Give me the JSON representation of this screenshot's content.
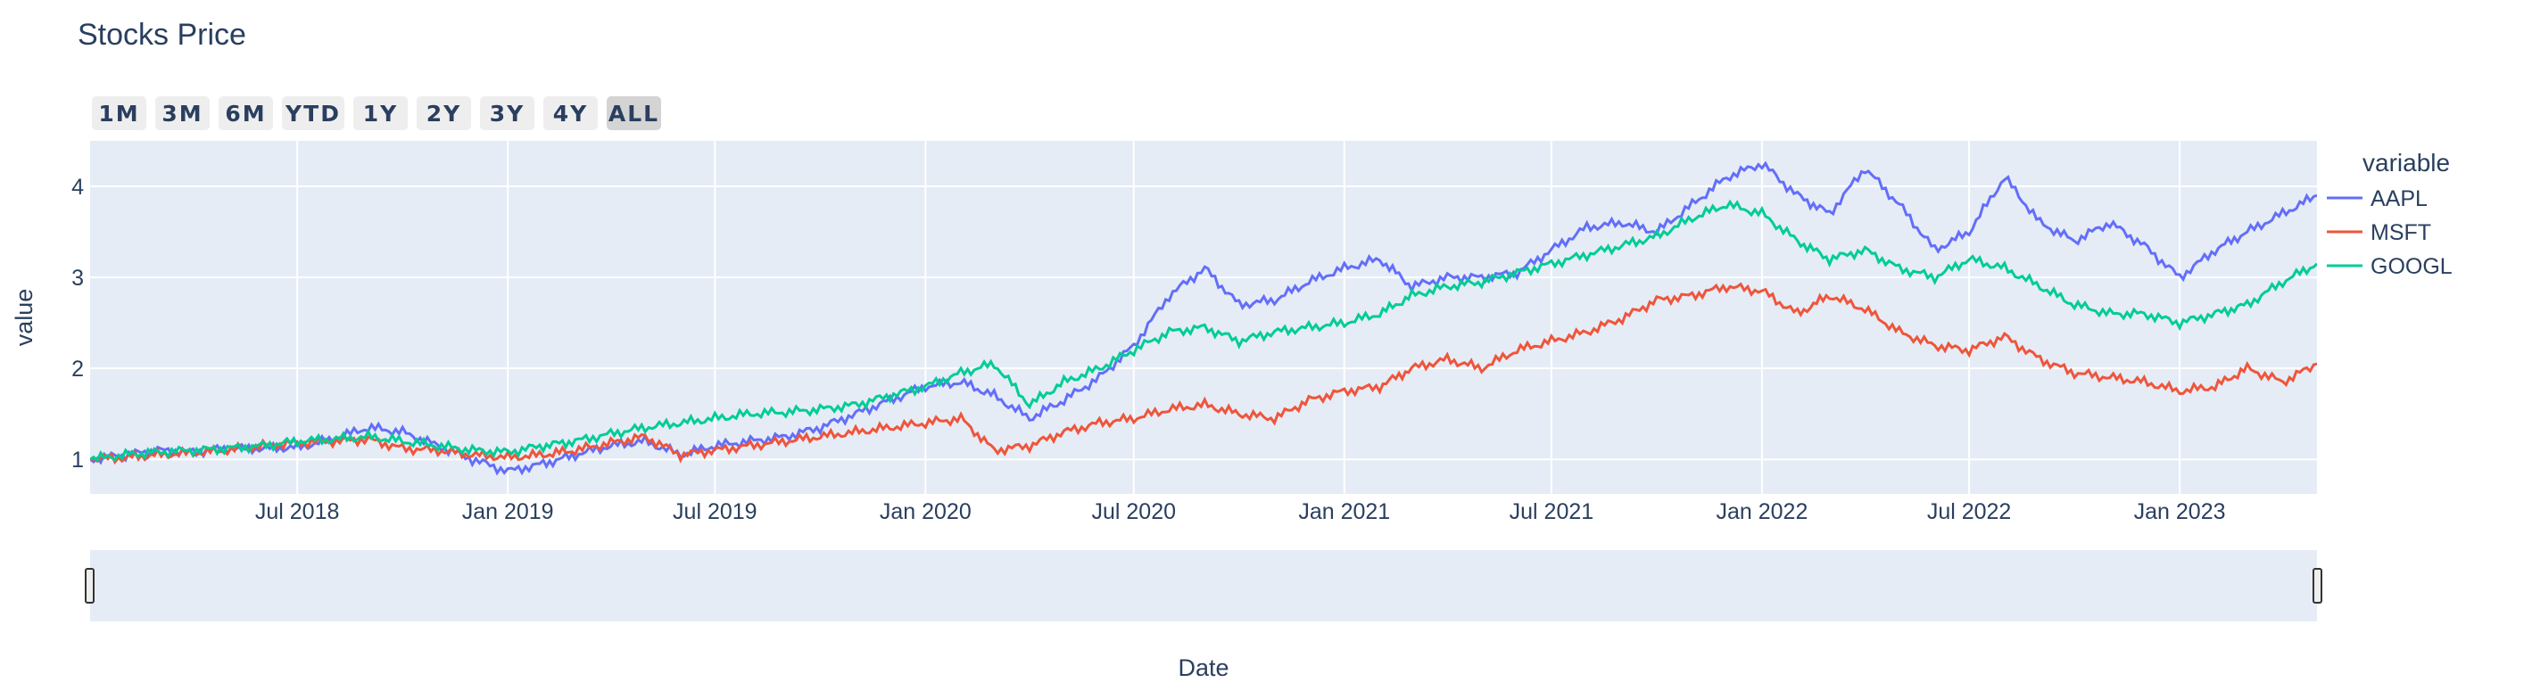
{
  "title": "Stocks Price",
  "range_selector": {
    "buttons": [
      "1M",
      "3M",
      "6M",
      "YTD",
      "1Y",
      "2Y",
      "3Y",
      "4Y",
      "ALL"
    ],
    "active": "ALL"
  },
  "colors": {
    "plot_bg": "#e5ecf6",
    "grid": "#ffffff",
    "AAPL": "#636efa",
    "MSFT": "#ef553b",
    "GOOGL": "#00cc96",
    "text": "#2a3f5f"
  },
  "chart_data": {
    "type": "line",
    "title": "Stocks Price",
    "xlabel": "Date",
    "ylabel": "value",
    "x_range": [
      "2018-01-01",
      "2023-05-01"
    ],
    "y_range": [
      0.62,
      4.5
    ],
    "x_ticks": [
      {
        "date": "2018-07-01",
        "label": "Jul 2018"
      },
      {
        "date": "2019-01-01",
        "label": "Jan 2019"
      },
      {
        "date": "2019-07-01",
        "label": "Jul 2019"
      },
      {
        "date": "2020-01-01",
        "label": "Jan 2020"
      },
      {
        "date": "2020-07-01",
        "label": "Jul 2020"
      },
      {
        "date": "2021-01-01",
        "label": "Jan 2021"
      },
      {
        "date": "2021-07-01",
        "label": "Jul 2021"
      },
      {
        "date": "2022-01-01",
        "label": "Jan 2022"
      },
      {
        "date": "2022-07-01",
        "label": "Jul 2022"
      },
      {
        "date": "2023-01-01",
        "label": "Jan 2023"
      }
    ],
    "y_ticks": [
      1,
      2,
      3,
      4
    ],
    "grid": true,
    "legend": {
      "title": "variable",
      "position": "right"
    },
    "series": [
      {
        "name": "AAPL",
        "points": [
          [
            "2018-01-01",
            1.0
          ],
          [
            "2018-02-01",
            1.05
          ],
          [
            "2018-03-01",
            1.1
          ],
          [
            "2018-04-01",
            1.08
          ],
          [
            "2018-05-01",
            1.12
          ],
          [
            "2018-06-01",
            1.12
          ],
          [
            "2018-07-01",
            1.13
          ],
          [
            "2018-08-01",
            1.22
          ],
          [
            "2018-09-01",
            1.35
          ],
          [
            "2018-10-01",
            1.3
          ],
          [
            "2018-11-01",
            1.15
          ],
          [
            "2018-12-01",
            1.0
          ],
          [
            "2019-01-01",
            0.87
          ],
          [
            "2019-02-01",
            0.95
          ],
          [
            "2019-03-01",
            1.05
          ],
          [
            "2019-04-01",
            1.15
          ],
          [
            "2019-05-01",
            1.2
          ],
          [
            "2019-06-01",
            1.05
          ],
          [
            "2019-07-01",
            1.15
          ],
          [
            "2019-08-01",
            1.2
          ],
          [
            "2019-09-01",
            1.25
          ],
          [
            "2019-10-01",
            1.35
          ],
          [
            "2019-11-01",
            1.5
          ],
          [
            "2019-12-01",
            1.65
          ],
          [
            "2020-01-01",
            1.8
          ],
          [
            "2020-02-01",
            1.85
          ],
          [
            "2020-03-01",
            1.7
          ],
          [
            "2020-04-01",
            1.45
          ],
          [
            "2020-05-01",
            1.65
          ],
          [
            "2020-06-01",
            1.9
          ],
          [
            "2020-07-01",
            2.25
          ],
          [
            "2020-08-01",
            2.8
          ],
          [
            "2020-09-01",
            3.1
          ],
          [
            "2020-10-01",
            2.7
          ],
          [
            "2020-11-01",
            2.75
          ],
          [
            "2020-12-01",
            2.95
          ],
          [
            "2021-01-01",
            3.1
          ],
          [
            "2021-02-01",
            3.2
          ],
          [
            "2021-03-01",
            2.9
          ],
          [
            "2021-04-01",
            3.0
          ],
          [
            "2021-05-01",
            3.0
          ],
          [
            "2021-06-01",
            3.05
          ],
          [
            "2021-07-01",
            3.3
          ],
          [
            "2021-08-01",
            3.55
          ],
          [
            "2021-09-01",
            3.6
          ],
          [
            "2021-10-01",
            3.5
          ],
          [
            "2021-11-01",
            3.8
          ],
          [
            "2021-12-01",
            4.1
          ],
          [
            "2022-01-01",
            4.25
          ],
          [
            "2022-02-01",
            3.9
          ],
          [
            "2022-03-01",
            3.7
          ],
          [
            "2022-04-01",
            4.2
          ],
          [
            "2022-05-01",
            3.8
          ],
          [
            "2022-06-01",
            3.3
          ],
          [
            "2022-07-01",
            3.5
          ],
          [
            "2022-08-01",
            4.1
          ],
          [
            "2022-09-01",
            3.6
          ],
          [
            "2022-10-01",
            3.4
          ],
          [
            "2022-11-01",
            3.6
          ],
          [
            "2022-12-01",
            3.35
          ],
          [
            "2023-01-01",
            3.0
          ],
          [
            "2023-02-01",
            3.3
          ],
          [
            "2023-03-01",
            3.5
          ],
          [
            "2023-04-01",
            3.7
          ],
          [
            "2023-05-01",
            3.9
          ]
        ]
      },
      {
        "name": "MSFT",
        "points": [
          [
            "2018-01-01",
            1.0
          ],
          [
            "2018-02-01",
            1.02
          ],
          [
            "2018-03-01",
            1.05
          ],
          [
            "2018-04-01",
            1.07
          ],
          [
            "2018-05-01",
            1.1
          ],
          [
            "2018-06-01",
            1.15
          ],
          [
            "2018-07-01",
            1.18
          ],
          [
            "2018-08-01",
            1.2
          ],
          [
            "2018-09-01",
            1.22
          ],
          [
            "2018-10-01",
            1.12
          ],
          [
            "2018-11-01",
            1.1
          ],
          [
            "2018-12-01",
            1.05
          ],
          [
            "2019-01-01",
            1.02
          ],
          [
            "2019-02-01",
            1.05
          ],
          [
            "2019-03-01",
            1.1
          ],
          [
            "2019-04-01",
            1.18
          ],
          [
            "2019-05-01",
            1.25
          ],
          [
            "2019-06-01",
            1.05
          ],
          [
            "2019-07-01",
            1.1
          ],
          [
            "2019-08-01",
            1.15
          ],
          [
            "2019-09-01",
            1.2
          ],
          [
            "2019-10-01",
            1.25
          ],
          [
            "2019-11-01",
            1.3
          ],
          [
            "2019-12-01",
            1.35
          ],
          [
            "2020-01-01",
            1.4
          ],
          [
            "2020-02-01",
            1.45
          ],
          [
            "2020-03-01",
            1.1
          ],
          [
            "2020-04-01",
            1.15
          ],
          [
            "2020-05-01",
            1.3
          ],
          [
            "2020-06-01",
            1.4
          ],
          [
            "2020-07-01",
            1.45
          ],
          [
            "2020-08-01",
            1.55
          ],
          [
            "2020-09-01",
            1.6
          ],
          [
            "2020-10-01",
            1.5
          ],
          [
            "2020-11-01",
            1.45
          ],
          [
            "2020-12-01",
            1.65
          ],
          [
            "2021-01-01",
            1.75
          ],
          [
            "2021-02-01",
            1.8
          ],
          [
            "2021-03-01",
            2.0
          ],
          [
            "2021-04-01",
            2.1
          ],
          [
            "2021-05-01",
            2.0
          ],
          [
            "2021-06-01",
            2.2
          ],
          [
            "2021-07-01",
            2.3
          ],
          [
            "2021-08-01",
            2.4
          ],
          [
            "2021-09-01",
            2.55
          ],
          [
            "2021-10-01",
            2.75
          ],
          [
            "2021-11-01",
            2.8
          ],
          [
            "2021-12-01",
            2.9
          ],
          [
            "2022-01-01",
            2.85
          ],
          [
            "2022-02-01",
            2.6
          ],
          [
            "2022-03-01",
            2.8
          ],
          [
            "2022-04-01",
            2.65
          ],
          [
            "2022-05-01",
            2.4
          ],
          [
            "2022-06-01",
            2.25
          ],
          [
            "2022-07-01",
            2.2
          ],
          [
            "2022-08-01",
            2.35
          ],
          [
            "2022-09-01",
            2.1
          ],
          [
            "2022-10-01",
            1.95
          ],
          [
            "2022-11-01",
            1.9
          ],
          [
            "2022-12-01",
            1.85
          ],
          [
            "2023-01-01",
            1.75
          ],
          [
            "2023-02-01",
            1.8
          ],
          [
            "2023-03-01",
            2.0
          ],
          [
            "2023-04-01",
            1.85
          ],
          [
            "2023-05-01",
            2.05
          ]
        ]
      },
      {
        "name": "GOOGL",
        "points": [
          [
            "2018-01-01",
            1.0
          ],
          [
            "2018-02-01",
            1.05
          ],
          [
            "2018-03-01",
            1.08
          ],
          [
            "2018-04-01",
            1.1
          ],
          [
            "2018-05-01",
            1.12
          ],
          [
            "2018-06-01",
            1.15
          ],
          [
            "2018-07-01",
            1.2
          ],
          [
            "2018-08-01",
            1.22
          ],
          [
            "2018-09-01",
            1.25
          ],
          [
            "2018-10-01",
            1.2
          ],
          [
            "2018-11-01",
            1.15
          ],
          [
            "2018-12-01",
            1.1
          ],
          [
            "2019-01-01",
            1.08
          ],
          [
            "2019-02-01",
            1.15
          ],
          [
            "2019-03-01",
            1.2
          ],
          [
            "2019-04-01",
            1.28
          ],
          [
            "2019-05-01",
            1.35
          ],
          [
            "2019-06-01",
            1.4
          ],
          [
            "2019-07-01",
            1.45
          ],
          [
            "2019-08-01",
            1.5
          ],
          [
            "2019-09-01",
            1.52
          ],
          [
            "2019-10-01",
            1.55
          ],
          [
            "2019-11-01",
            1.6
          ],
          [
            "2019-12-01",
            1.7
          ],
          [
            "2020-01-01",
            1.8
          ],
          [
            "2020-02-01",
            1.95
          ],
          [
            "2020-03-01",
            2.05
          ],
          [
            "2020-04-01",
            1.6
          ],
          [
            "2020-05-01",
            1.85
          ],
          [
            "2020-06-01",
            2.0
          ],
          [
            "2020-07-01",
            2.2
          ],
          [
            "2020-08-01",
            2.4
          ],
          [
            "2020-09-01",
            2.45
          ],
          [
            "2020-10-01",
            2.3
          ],
          [
            "2020-11-01",
            2.4
          ],
          [
            "2020-12-01",
            2.45
          ],
          [
            "2021-01-01",
            2.5
          ],
          [
            "2021-02-01",
            2.6
          ],
          [
            "2021-03-01",
            2.8
          ],
          [
            "2021-04-01",
            2.9
          ],
          [
            "2021-05-01",
            2.95
          ],
          [
            "2021-06-01",
            3.05
          ],
          [
            "2021-07-01",
            3.15
          ],
          [
            "2021-08-01",
            3.25
          ],
          [
            "2021-09-01",
            3.35
          ],
          [
            "2021-10-01",
            3.45
          ],
          [
            "2021-11-01",
            3.65
          ],
          [
            "2021-12-01",
            3.8
          ],
          [
            "2022-01-01",
            3.7
          ],
          [
            "2022-02-01",
            3.4
          ],
          [
            "2022-03-01",
            3.2
          ],
          [
            "2022-04-01",
            3.3
          ],
          [
            "2022-05-01",
            3.1
          ],
          [
            "2022-06-01",
            3.0
          ],
          [
            "2022-07-01",
            3.2
          ],
          [
            "2022-08-01",
            3.1
          ],
          [
            "2022-09-01",
            2.9
          ],
          [
            "2022-10-01",
            2.7
          ],
          [
            "2022-11-01",
            2.6
          ],
          [
            "2022-12-01",
            2.6
          ],
          [
            "2023-01-01",
            2.5
          ],
          [
            "2023-02-01",
            2.6
          ],
          [
            "2023-03-01",
            2.7
          ],
          [
            "2023-04-01",
            2.95
          ],
          [
            "2023-05-01",
            3.15
          ]
        ]
      }
    ]
  }
}
